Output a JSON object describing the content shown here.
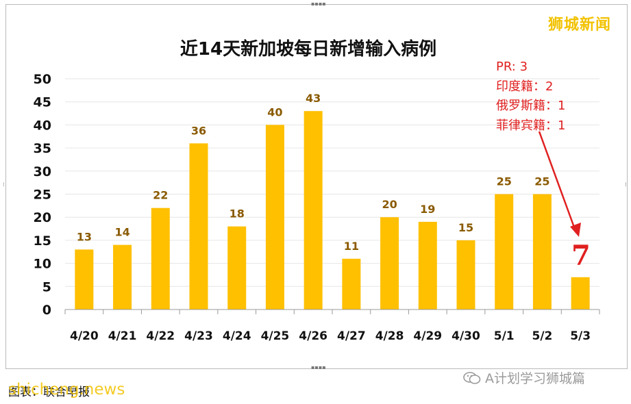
{
  "watermark": {
    "brand": "狮城新闻",
    "wechat": "A计划学习狮城篇",
    "source": "图表：联合早报",
    "site": "shicheng.news"
  },
  "annotation": {
    "lines": [
      "PR: 3",
      "印度籍：2",
      "俄罗斯籍：1",
      "菲律宾籍：1"
    ],
    "highlight_value": "7"
  },
  "colors": {
    "bar": "#ffc000",
    "label": "#8a5a00",
    "annotation": "#e02020",
    "brand": "#f2c200"
  },
  "chart_data": {
    "type": "bar",
    "title": "近14天新加坡每日新增输入病例",
    "categories": [
      "4/20",
      "4/21",
      "4/22",
      "4/23",
      "4/24",
      "4/25",
      "4/26",
      "4/27",
      "4/28",
      "4/29",
      "4/30",
      "5/1",
      "5/2",
      "5/3"
    ],
    "values": [
      13,
      14,
      22,
      36,
      18,
      40,
      43,
      11,
      20,
      19,
      15,
      25,
      25,
      7
    ],
    "ylim": [
      0,
      50
    ],
    "yticks": [
      0,
      5,
      10,
      15,
      20,
      25,
      30,
      35,
      40,
      45,
      50
    ],
    "xlabel": "",
    "ylabel": "",
    "grid": true,
    "legend": "none",
    "data_labels": true
  }
}
